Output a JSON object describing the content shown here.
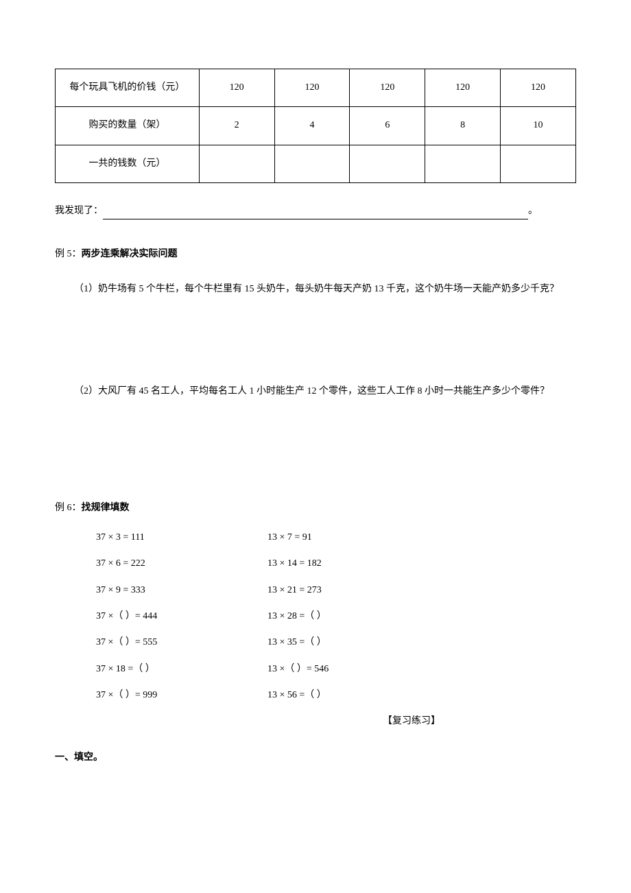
{
  "table": {
    "rows": [
      {
        "label": "每个玩具飞机的价钱（元）",
        "cells": [
          "120",
          "120",
          "120",
          "120",
          "120"
        ]
      },
      {
        "label": "购买的数量（架）",
        "cells": [
          "2",
          "4",
          "6",
          "8",
          "10"
        ]
      },
      {
        "label": "一共的钱数（元）",
        "cells": [
          "",
          "",
          "",
          "",
          ""
        ]
      }
    ]
  },
  "discovery": {
    "prefix": "我发现了：",
    "suffix": "。"
  },
  "example5": {
    "prefix": "例 5：",
    "title": "两步连乘解决实际问题",
    "problem1": "（1）奶牛场有 5 个牛栏，每个牛栏里有 15 头奶牛，每头奶牛每天产奶 13 千克，这个奶牛场一天能产奶多少千克？",
    "problem2": "（2）大风厂有 45 名工人，平均每名工人 1 小时能生产 12 个零件，这些工人工作 8 小时一共能生产多少个零件？"
  },
  "example6": {
    "prefix": "例 6：",
    "title": "找规律填数",
    "left": [
      "37 × 3 = 111",
      "37 × 6 = 222",
      "37 × 9 = 333",
      "37 ×（   ）= 444",
      "37 ×（   ）= 555",
      "37 × 18 =（   ）",
      "37 ×（   ）= 999"
    ],
    "right": [
      "13 ×  7 =  91",
      "13 × 14 = 182",
      "13 × 21 = 273",
      "13 × 28 =（   ）",
      "13 × 35 =（   ）",
      "13 ×（   ）= 546",
      "13 × 56 =（   ）"
    ]
  },
  "review": {
    "title": "【复习练习】"
  },
  "section1": {
    "heading": "一、填空。"
  }
}
